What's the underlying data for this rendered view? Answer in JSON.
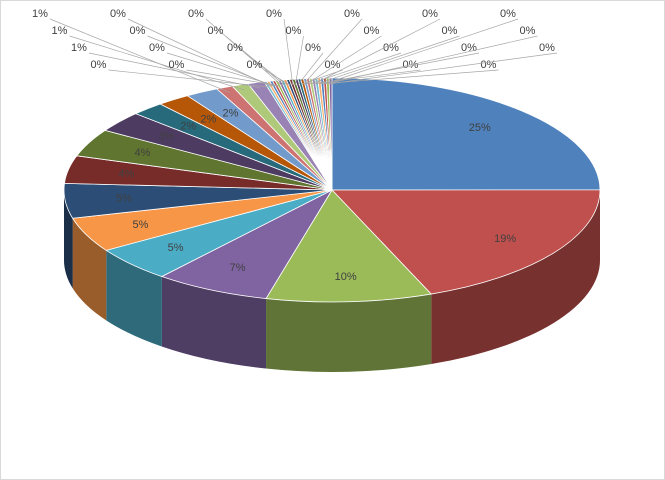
{
  "chart_data": {
    "type": "pie",
    "values": [
      25,
      19,
      10,
      7,
      5,
      5,
      5,
      4,
      4,
      3,
      2,
      2,
      2,
      1,
      1,
      1,
      0.17,
      0.17,
      0.17,
      0.17,
      0.17,
      0.17,
      0.17,
      0.17,
      0.17,
      0.17,
      0.17,
      0.17,
      0.17,
      0.17,
      0.17,
      0.17,
      0.17,
      0.17,
      0.17,
      0.17,
      0.17,
      0.17,
      0.17,
      0.17
    ],
    "value_labels": [
      "25%",
      "19%",
      "10%",
      "7%",
      "5%",
      "5%",
      "5%",
      "4%",
      "4%",
      "3%",
      "2%",
      "2%",
      "2%",
      "1%",
      "1%",
      "1%",
      "0%",
      "0%",
      "0%",
      "0%",
      "0%",
      "0%",
      "0%",
      "0%",
      "0%",
      "0%",
      "0%",
      "0%",
      "0%",
      "0%",
      "0%",
      "0%",
      "0%",
      "0%",
      "0%",
      "0%",
      "0%",
      "0%",
      "0%",
      "0%"
    ],
    "colors": [
      "#4f81bd",
      "#c0504d",
      "#9bbb59",
      "#8064a2",
      "#4bacc6",
      "#f79646",
      "#2c4d75",
      "#772c2a",
      "#5f7530",
      "#4d3b62",
      "#276a7c",
      "#b65708",
      "#729aca",
      "#cd7371",
      "#afc97a",
      "#9983b5",
      "#6fbdd1",
      "#f9ab6b"
    ]
  }
}
